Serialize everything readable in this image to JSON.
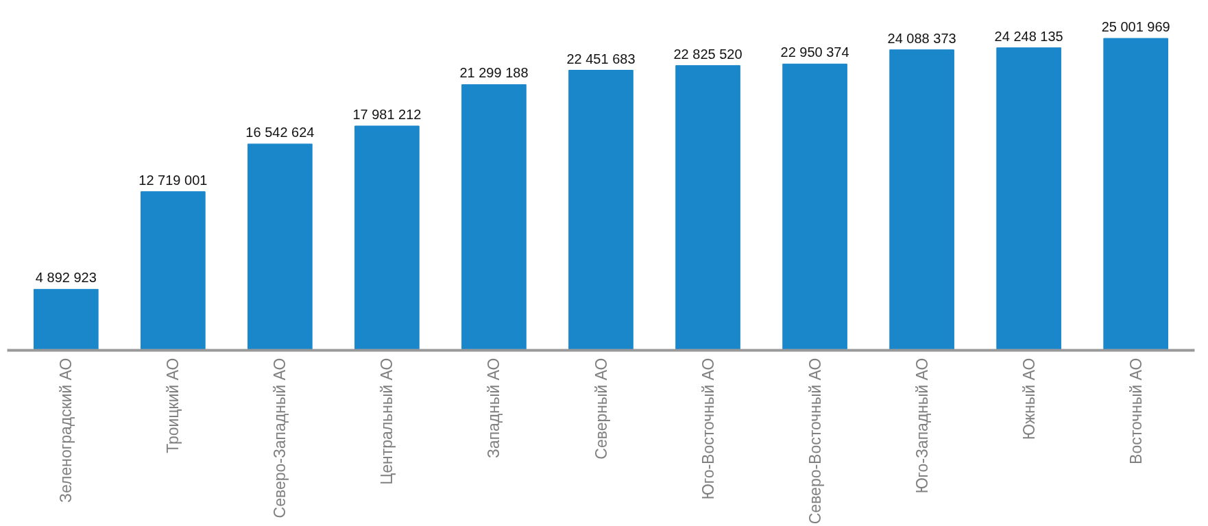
{
  "chart_data": {
    "type": "bar",
    "categories": [
      "Зеленоградский АО",
      "Троицкий АО",
      "Северо-Западный АО",
      "Центральный АО",
      "Западный АО",
      "Северный АО",
      "Юго-Восточный АО",
      "Северо-Восточный АО",
      "Юго-Западный АО",
      "Южный АО",
      "Восточный АО"
    ],
    "values": [
      4892923,
      12719001,
      16542624,
      17981212,
      21299188,
      22451683,
      22825520,
      22950374,
      24088373,
      24248135,
      25001969
    ],
    "color": "#1a87cb",
    "data_labels": true,
    "grid": false,
    "tick_labels": "x"
  }
}
